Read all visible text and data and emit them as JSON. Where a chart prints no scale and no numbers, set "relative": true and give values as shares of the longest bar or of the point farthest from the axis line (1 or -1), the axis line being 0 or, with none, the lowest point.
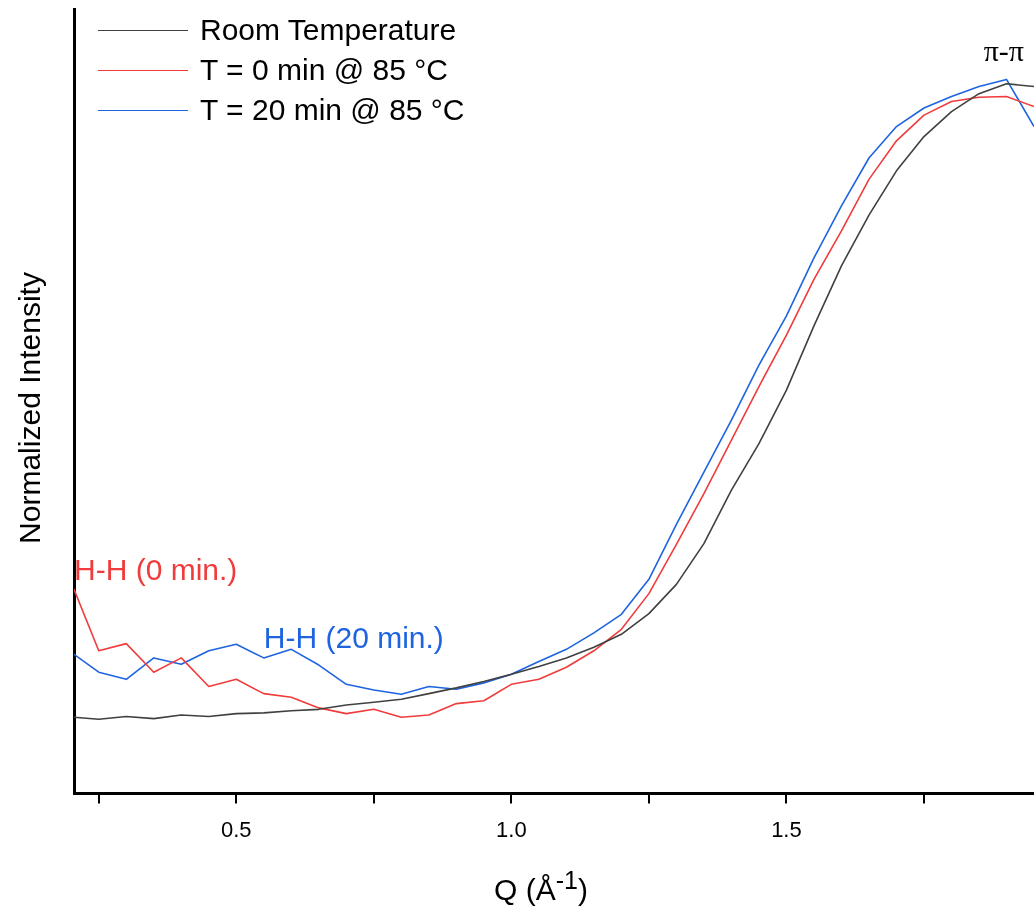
{
  "chart_data": {
    "type": "line",
    "relative": true,
    "xlabel": "Q (Å$^{-1}$)",
    "ylabel": "Normalized Intensity",
    "x": [
      0.205,
      0.25,
      0.3,
      0.35,
      0.4,
      0.45,
      0.5,
      0.55,
      0.6,
      0.65,
      0.7,
      0.75,
      0.8,
      0.85,
      0.9,
      0.95,
      1.0,
      1.05,
      1.1,
      1.15,
      1.2,
      1.25,
      1.3,
      1.35,
      1.4,
      1.45,
      1.5,
      1.55,
      1.6,
      1.65,
      1.7,
      1.75,
      1.8,
      1.85,
      1.9,
      1.95
    ],
    "xlim": [
      0.205,
      1.95
    ],
    "xticks": [
      {
        "value": 0.25,
        "label": null
      },
      0.5,
      {
        "value": 0.75,
        "label": null
      },
      {
        "value": 1,
        "label": "1.0"
      },
      {
        "value": 1.25,
        "label": null
      },
      1.5,
      {
        "value": 1.75,
        "label": null
      }
    ],
    "series": [
      {
        "name": "Room Temperature",
        "color": "#404040",
        "values": [
          0.107,
          0.104,
          0.108,
          0.105,
          0.11,
          0.108,
          0.112,
          0.113,
          0.116,
          0.118,
          0.124,
          0.128,
          0.132,
          0.14,
          0.148,
          0.157,
          0.167,
          0.178,
          0.19,
          0.205,
          0.223,
          0.252,
          0.293,
          0.35,
          0.425,
          0.49,
          0.565,
          0.655,
          0.739,
          0.81,
          0.872,
          0.92,
          0.955,
          0.98,
          0.994,
          0.99
        ]
      },
      {
        "name": "T = 0 min @ 85 °C",
        "color": "#f03c3c",
        "values": [
          0.286,
          0.2,
          0.21,
          0.17,
          0.19,
          0.15,
          0.16,
          0.14,
          0.135,
          0.12,
          0.112,
          0.118,
          0.107,
          0.11,
          0.126,
          0.13,
          0.153,
          0.16,
          0.177,
          0.2,
          0.23,
          0.28,
          0.349,
          0.42,
          0.495,
          0.57,
          0.642,
          0.72,
          0.788,
          0.86,
          0.914,
          0.95,
          0.969,
          0.975,
          0.976,
          0.962
        ]
      },
      {
        "name": "T = 20 min @ 85 °C",
        "color": "#1e64e0",
        "values": [
          0.195,
          0.17,
          0.16,
          0.19,
          0.181,
          0.2,
          0.209,
          0.19,
          0.202,
          0.18,
          0.153,
          0.145,
          0.139,
          0.15,
          0.146,
          0.155,
          0.167,
          0.185,
          0.202,
          0.225,
          0.251,
          0.3,
          0.377,
          0.45,
          0.523,
          0.6,
          0.669,
          0.75,
          0.823,
          0.89,
          0.934,
          0.96,
          0.976,
          0.99,
          1.0,
          0.934
        ]
      }
    ],
    "annotations": [
      {
        "text": "H-H (0 min.)",
        "x": 0.205,
        "y": 0.286
      },
      {
        "text": "H-H (20 min.)",
        "x": 0.55,
        "y": 0.19
      },
      "π-π"
    ],
    "legend": "top left",
    "grid": false,
    "marker": "none",
    "line_style": "solid"
  }
}
